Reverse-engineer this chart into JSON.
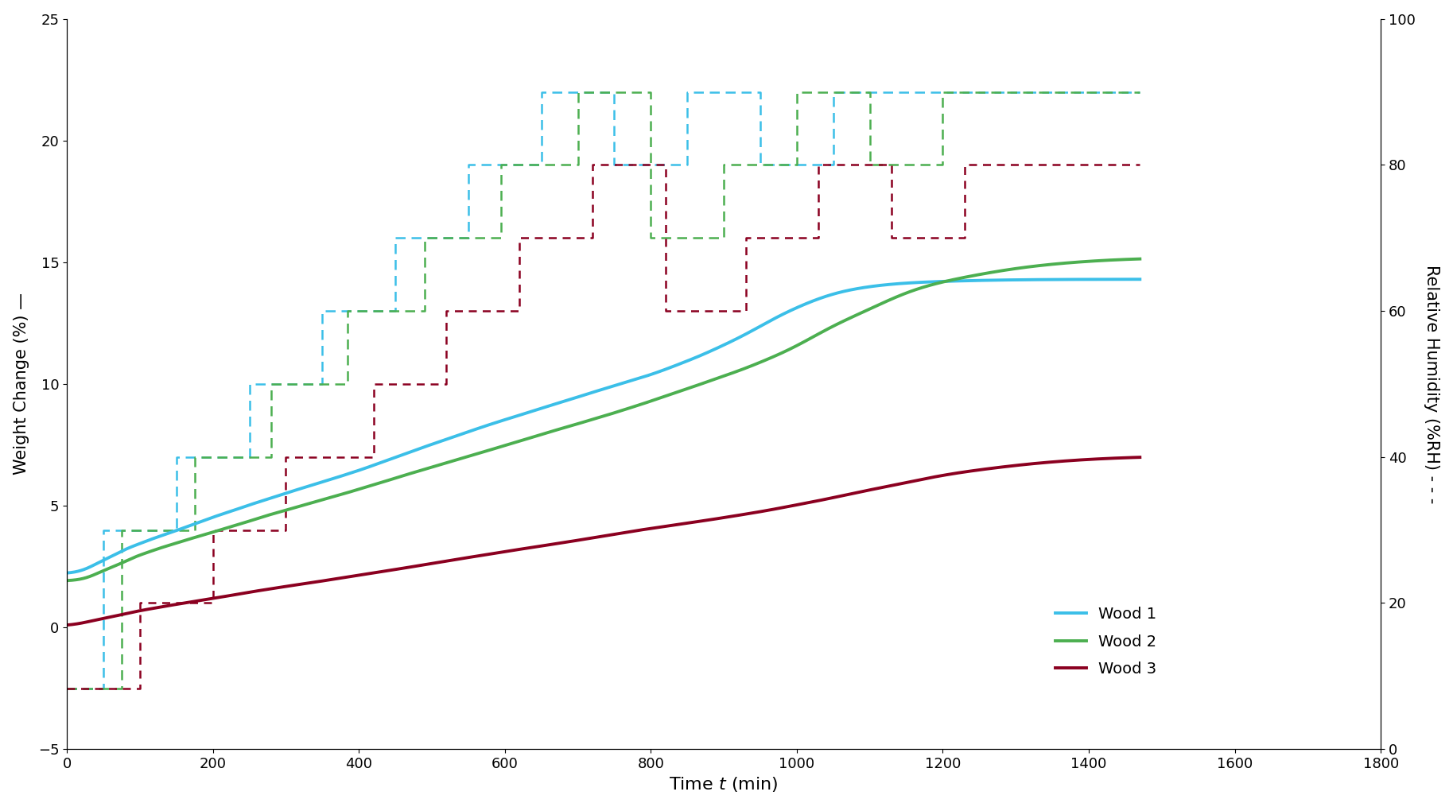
{
  "xlabel": "Time $t$ (min)",
  "ylabel_left": "Weight Change (%) —",
  "ylabel_right": "Relative Humidity (%RH) - - -",
  "xlim": [
    0,
    1800
  ],
  "ylim_left": [
    -5,
    25
  ],
  "ylim_right": [
    0,
    100
  ],
  "xticks": [
    0,
    200,
    400,
    600,
    800,
    1000,
    1200,
    1400,
    1600,
    1800
  ],
  "yticks_left": [
    -5,
    0,
    5,
    10,
    15,
    20,
    25
  ],
  "yticks_right": [
    0,
    20,
    40,
    60,
    80,
    100
  ],
  "wood1_color": "#3BBFE8",
  "wood2_color": "#4CAF50",
  "wood3_color": "#8B0020",
  "legend_labels": [
    "Wood 1",
    "Wood 2",
    "Wood 3"
  ],
  "background_color": "#ffffff",
  "linewidth_solid": 2.8,
  "linewidth_dashed": 1.8,
  "rh1_steps_t": [
    0,
    50,
    50,
    150,
    150,
    250,
    250,
    350,
    350,
    450,
    450,
    550,
    550,
    650,
    650,
    750,
    750,
    850,
    850,
    950,
    950,
    1050,
    1050,
    1150,
    1150,
    1470
  ],
  "rh1_steps_v": [
    -2.5,
    -2.5,
    4.0,
    4.0,
    7.0,
    7.0,
    10.0,
    10.0,
    13.0,
    13.0,
    16.0,
    16.0,
    19.0,
    19.0,
    22.0,
    22.0,
    19.0,
    19.0,
    22.0,
    22.0,
    19.0,
    19.0,
    22.0,
    22.0,
    22.0,
    22.0
  ],
  "rh2_steps_t": [
    0,
    75,
    75,
    175,
    175,
    280,
    280,
    385,
    385,
    490,
    490,
    595,
    595,
    700,
    700,
    800,
    800,
    900,
    900,
    1000,
    1000,
    1100,
    1100,
    1200,
    1200,
    1470
  ],
  "rh2_steps_v": [
    -2.5,
    -2.5,
    4.0,
    4.0,
    7.0,
    7.0,
    10.0,
    10.0,
    13.0,
    13.0,
    16.0,
    16.0,
    19.0,
    19.0,
    22.0,
    22.0,
    16.0,
    16.0,
    19.0,
    19.0,
    22.0,
    22.0,
    19.0,
    19.0,
    22.0,
    22.0
  ],
  "rh3_steps_t": [
    0,
    100,
    100,
    200,
    200,
    300,
    300,
    420,
    420,
    520,
    520,
    620,
    620,
    720,
    720,
    820,
    820,
    930,
    930,
    1030,
    1030,
    1130,
    1130,
    1230,
    1230,
    1470
  ],
  "rh3_steps_v": [
    -2.5,
    -2.5,
    1.0,
    1.0,
    4.0,
    4.0,
    7.0,
    7.0,
    10.0,
    10.0,
    13.0,
    13.0,
    16.0,
    16.0,
    19.0,
    19.0,
    13.0,
    13.0,
    16.0,
    16.0,
    19.0,
    19.0,
    16.0,
    16.0,
    19.0,
    19.0
  ]
}
